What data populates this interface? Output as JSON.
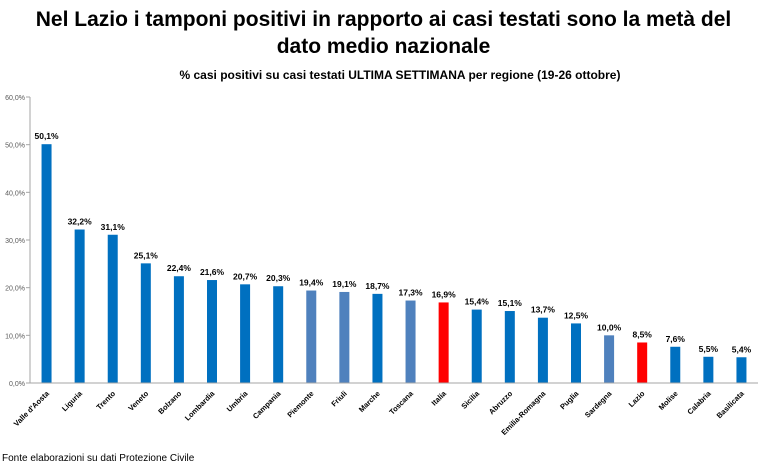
{
  "header": {
    "title": "Nel Lazio i tamponi positivi in rapporto ai casi testati sono la metà del dato medio nazionale"
  },
  "footer": {
    "source": "Fonte elaborazioni su dati Protezione Civile"
  },
  "chart_data": {
    "type": "bar",
    "title": "% casi positivi su casi testati ULTIMA SETTIMANA per regione (19-26 ottobre)",
    "xlabel": "",
    "ylabel": "",
    "ylim": [
      0,
      60
    ],
    "yticks": [
      0,
      10,
      20,
      30,
      40,
      50,
      60
    ],
    "ytick_labels": [
      "0,0%",
      "10,0%",
      "20,0%",
      "30,0%",
      "40,0%",
      "50,0%",
      "60,0%"
    ],
    "grid": false,
    "legend": "none",
    "categories": [
      "Valle d'Aosta",
      "Liguria",
      "Trento",
      "Veneto",
      "Bolzano",
      "Lombardia",
      "Umbria",
      "Campania",
      "Piemonte",
      "Friuli",
      "Marche",
      "Toscana",
      "Italia",
      "Sicilia",
      "Abruzzo",
      "Emilia-Romagna",
      "Puglia",
      "Sardegna",
      "Lazio",
      "Molise",
      "Calabria",
      "Basilicata"
    ],
    "values": [
      50.1,
      32.2,
      31.1,
      25.1,
      22.4,
      21.6,
      20.7,
      20.3,
      19.4,
      19.1,
      18.7,
      17.3,
      16.9,
      15.4,
      15.1,
      13.7,
      12.5,
      10.0,
      8.5,
      7.6,
      5.5,
      5.4
    ],
    "value_labels": [
      "50,1%",
      "32,2%",
      "31,1%",
      "25,1%",
      "22,4%",
      "21,6%",
      "20,7%",
      "20,3%",
      "19,4%",
      "19,1%",
      "18,7%",
      "17,3%",
      "16,9%",
      "15,4%",
      "15,1%",
      "13,7%",
      "12,5%",
      "10,0%",
      "8,5%",
      "7,6%",
      "5,5%",
      "5,4%"
    ],
    "bar_colors": [
      "#0070C0",
      "#0070C0",
      "#0070C0",
      "#0070C0",
      "#0070C0",
      "#0070C0",
      "#0070C0",
      "#0070C0",
      "#4F81BD",
      "#4F81BD",
      "#0070C0",
      "#4F81BD",
      "#FF0000",
      "#0070C0",
      "#0070C0",
      "#0070C0",
      "#0070C0",
      "#4F81BD",
      "#FF0000",
      "#0070C0",
      "#0070C0",
      "#0070C0"
    ]
  }
}
